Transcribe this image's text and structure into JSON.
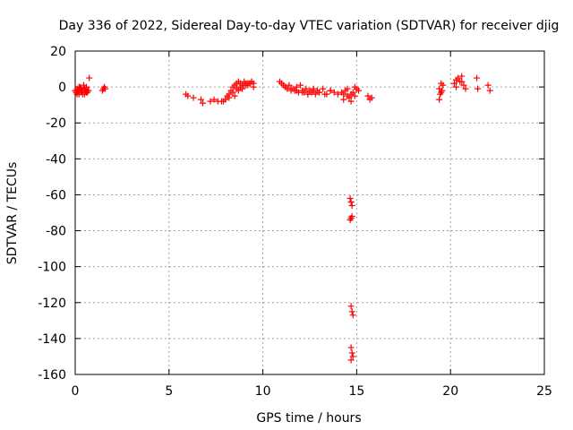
{
  "chart_data": {
    "type": "scatter",
    "title": "Day 336 of 2022, Sidereal Day-to-day VTEC variation (SDTVAR) for receiver djig",
    "xlabel": "GPS time / hours",
    "ylabel": "SDTVAR / TECUs",
    "xlim": [
      0,
      25
    ],
    "ylim": [
      -160,
      20
    ],
    "xticks": [
      0,
      5,
      10,
      15,
      20,
      25
    ],
    "yticks": [
      -160,
      -140,
      -120,
      -100,
      -80,
      -60,
      -40,
      -20,
      0,
      20
    ],
    "xtick_labels": [
      "0",
      "5",
      "10",
      "15",
      "20",
      "25"
    ],
    "ytick_labels": [
      "-160",
      "-140",
      "-120",
      "-100",
      "-80",
      "-60",
      "-40",
      "-20",
      "0",
      "20"
    ],
    "grid": true,
    "marker": "plus",
    "color": "#ff0000",
    "series": [
      {
        "name": "SDTVAR",
        "x": [
          0.0,
          0.05,
          0.1,
          0.15,
          0.2,
          0.25,
          0.3,
          0.35,
          0.4,
          0.45,
          0.5,
          0.55,
          0.6,
          0.65,
          0.7,
          0.0,
          0.1,
          0.2,
          0.3,
          0.4,
          0.5,
          0.6,
          0.1,
          0.2,
          0.3,
          0.4,
          0.5,
          0.6,
          0.7,
          0.75,
          1.5,
          1.55,
          1.6,
          1.45,
          5.9,
          6.0,
          6.3,
          6.7,
          6.8,
          7.2,
          7.4,
          7.6,
          7.8,
          7.9,
          8.0,
          8.1,
          8.2,
          8.3,
          8.4,
          8.5,
          8.6,
          8.7,
          8.8,
          8.9,
          9.0,
          9.1,
          9.2,
          9.3,
          9.4,
          9.5,
          8.2,
          8.4,
          8.6,
          8.8,
          9.0,
          9.2,
          9.4,
          8.5,
          8.7,
          8.9,
          9.1,
          9.3,
          9.5,
          10.9,
          11.0,
          11.1,
          11.2,
          11.3,
          11.4,
          11.5,
          11.6,
          11.7,
          11.8,
          11.9,
          12.0,
          12.1,
          12.2,
          12.3,
          12.4,
          12.5,
          12.6,
          12.7,
          12.8,
          12.9,
          13.0,
          13.2,
          13.4,
          13.6,
          13.8,
          14.0,
          11.2,
          11.5,
          11.8,
          12.1,
          12.4,
          12.7,
          13.0,
          13.3,
          13.6,
          14.2,
          14.3,
          14.4,
          14.5,
          14.6,
          14.7,
          14.8,
          14.9,
          15.0,
          15.1,
          14.3,
          14.5,
          14.7,
          14.9,
          15.6,
          15.7,
          15.8,
          19.4,
          19.45,
          19.5,
          19.55,
          19.6,
          19.5,
          19.4,
          20.2,
          20.3,
          20.4,
          20.5,
          20.6,
          20.7,
          20.8,
          20.3,
          20.6,
          21.4,
          21.45,
          22.0,
          22.1,
          14.65,
          14.7,
          14.75,
          14.65,
          14.7,
          14.75,
          14.7,
          14.75,
          14.8,
          14.7,
          14.75,
          14.8,
          14.7
        ],
        "y": [
          -2,
          -3,
          -1,
          -2,
          -3,
          0,
          -1,
          -2,
          -3,
          1,
          -1,
          -2,
          0,
          -3,
          -2,
          -2,
          -3,
          0,
          -1,
          -2,
          -3,
          -1,
          -4,
          -4,
          -3,
          -4,
          -4,
          -3,
          -2,
          5,
          -1,
          0,
          -1,
          -2,
          -4,
          -5,
          -6,
          -7,
          -9,
          -8,
          -7,
          -8,
          -8,
          -8,
          -7,
          -5,
          -4,
          -2,
          0,
          1,
          2,
          3,
          2,
          1,
          3,
          2,
          1,
          2,
          3,
          2,
          -6,
          -3,
          -1,
          0,
          1,
          2,
          3,
          -5,
          -2,
          -1,
          1,
          2,
          0,
          3,
          2,
          1,
          0,
          -1,
          1,
          -2,
          -1,
          -2,
          0,
          -3,
          1,
          -2,
          -3,
          -1,
          -4,
          -2,
          -3,
          -1,
          -4,
          -2,
          -3,
          -1,
          -4,
          -2,
          -3,
          -4,
          0,
          -1,
          -2,
          -3,
          -4,
          -2,
          -3,
          -4,
          -2,
          -3,
          -4,
          -2,
          -5,
          -6,
          -4,
          -3,
          -5,
          -1,
          -2,
          -7,
          -1,
          -8,
          0,
          -5,
          -7,
          -6,
          -7,
          -4,
          -3,
          -2,
          1,
          2,
          -1,
          2,
          4,
          5,
          3,
          6,
          1,
          -1,
          0,
          3,
          5,
          -1,
          1,
          -2,
          -62,
          -64,
          -66,
          -74,
          -73,
          -72,
          -122,
          -125,
          -127,
          -145,
          -148,
          -150,
          -152
        ]
      }
    ]
  }
}
